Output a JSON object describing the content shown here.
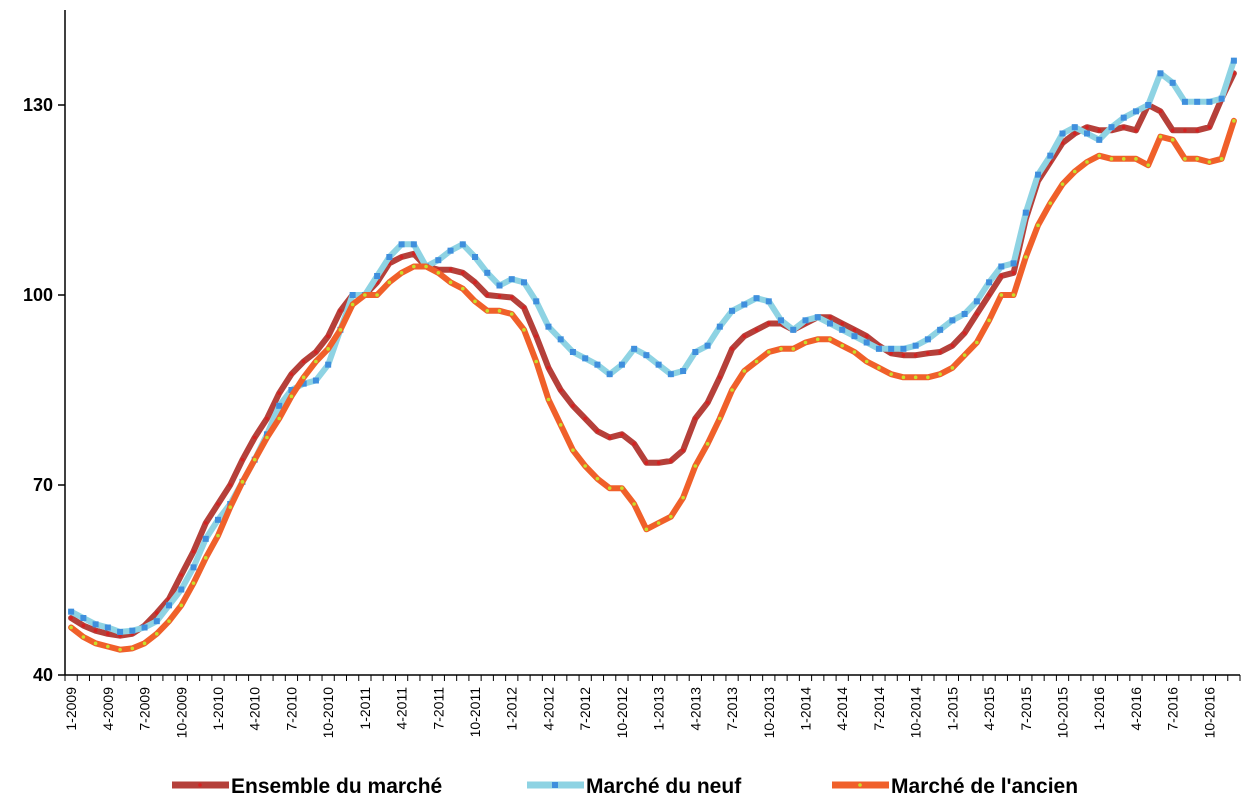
{
  "chart_data": {
    "type": "line",
    "title": "",
    "xlabel": "",
    "ylabel": "",
    "ylim": [
      40,
      145
    ],
    "y_ticks": [
      40,
      70,
      100,
      130
    ],
    "grid": false,
    "legend_position": "bottom",
    "x": [
      "1-2009",
      "2-2009",
      "3-2009",
      "4-2009",
      "5-2009",
      "6-2009",
      "7-2009",
      "8-2009",
      "9-2009",
      "10-2009",
      "11-2009",
      "12-2009",
      "1-2010",
      "2-2010",
      "3-2010",
      "4-2010",
      "5-2010",
      "6-2010",
      "7-2010",
      "8-2010",
      "9-2010",
      "10-2010",
      "11-2010",
      "12-2010",
      "1-2011",
      "2-2011",
      "3-2011",
      "4-2011",
      "5-2011",
      "6-2011",
      "7-2011",
      "8-2011",
      "9-2011",
      "10-2011",
      "11-2011",
      "12-2011",
      "1-2012",
      "2-2012",
      "3-2012",
      "4-2012",
      "5-2012",
      "6-2012",
      "7-2012",
      "8-2012",
      "9-2012",
      "10-2012",
      "11-2012",
      "12-2012",
      "1-2013",
      "2-2013",
      "3-2013",
      "4-2013",
      "5-2013",
      "6-2013",
      "7-2013",
      "8-2013",
      "9-2013",
      "10-2013",
      "11-2013",
      "12-2013",
      "1-2014",
      "2-2014",
      "3-2014",
      "4-2014",
      "5-2014",
      "6-2014",
      "7-2014",
      "8-2014",
      "9-2014",
      "10-2014",
      "11-2014",
      "12-2014",
      "1-2015",
      "2-2015",
      "3-2015",
      "4-2015",
      "5-2015",
      "6-2015",
      "7-2015",
      "8-2015",
      "9-2015",
      "10-2015",
      "11-2015",
      "12-2015",
      "1-2016",
      "2-2016",
      "3-2016",
      "4-2016",
      "5-2016",
      "6-2016",
      "7-2016",
      "8-2016",
      "9-2016",
      "10-2016",
      "11-2016",
      "12-2016"
    ],
    "x_tick_labels": [
      "1-2009",
      "4-2009",
      "7-2009",
      "10-2009",
      "1-2010",
      "4-2010",
      "7-2010",
      "10-2010",
      "1-2011",
      "4-2011",
      "7-2011",
      "10-2011",
      "1-2012",
      "4-2012",
      "7-2012",
      "10-2012",
      "1-2013",
      "4-2013",
      "7-2013",
      "10-2013",
      "1-2014",
      "4-2014",
      "7-2014",
      "10-2014",
      "1-2015",
      "4-2015",
      "7-2015",
      "10-2015",
      "1-2016",
      "4-2016",
      "7-2016",
      "10-2016"
    ],
    "series": [
      {
        "name": "Ensemble du marché",
        "color": "#b5403a",
        "marker_color": "#d62020",
        "marker": "dot",
        "values": [
          49.0,
          47.8,
          47.0,
          46.5,
          46.2,
          46.5,
          47.8,
          49.8,
          52.0,
          55.8,
          59.5,
          64.0,
          67.0,
          70.0,
          74.0,
          77.5,
          80.5,
          84.5,
          87.5,
          89.5,
          91.0,
          93.5,
          97.5,
          100.0,
          100.0,
          102.0,
          105.0,
          106.0,
          106.5,
          104.5,
          104.0,
          104.0,
          103.5,
          102.0,
          100.0,
          99.8,
          99.6,
          98.0,
          93.5,
          88.5,
          85.0,
          82.5,
          80.5,
          78.5,
          77.5,
          78.0,
          76.5,
          73.5,
          73.5,
          73.8,
          75.5,
          80.5,
          83.0,
          87.0,
          91.5,
          93.5,
          94.5,
          95.5,
          95.5,
          94.5,
          95.5,
          96.5,
          96.5,
          95.5,
          94.5,
          93.5,
          92.0,
          90.8,
          90.5,
          90.5,
          90.8,
          91.0,
          92.0,
          94.0,
          97.0,
          100.0,
          103.0,
          103.5,
          112.0,
          118.0,
          121.0,
          124.0,
          125.5,
          126.5,
          126.0,
          126.0,
          126.5,
          126.0,
          130.0,
          129.0,
          126.0,
          126.0,
          126.0,
          126.5,
          131.0,
          135.0
        ]
      },
      {
        "name": "Marché du neuf",
        "color": "#8ed3e3",
        "marker_color": "#3f8fdd",
        "marker": "square",
        "values": [
          50.0,
          49.0,
          48.0,
          47.5,
          46.8,
          47.0,
          47.5,
          48.5,
          51.0,
          53.5,
          57.0,
          61.5,
          64.5,
          67.0,
          70.5,
          74.0,
          78.0,
          82.5,
          85.0,
          86.0,
          86.5,
          89.0,
          94.5,
          100.0,
          100.0,
          103.0,
          106.0,
          108.0,
          108.0,
          104.5,
          105.5,
          107.0,
          108.0,
          106.0,
          103.5,
          101.5,
          102.5,
          102.0,
          99.0,
          95.0,
          93.0,
          91.0,
          90.0,
          89.0,
          87.5,
          89.0,
          91.5,
          90.5,
          89.0,
          87.5,
          88.0,
          91.0,
          92.0,
          95.0,
          97.5,
          98.5,
          99.5,
          99.0,
          96.0,
          94.5,
          96.0,
          96.5,
          95.5,
          94.5,
          93.5,
          92.5,
          91.5,
          91.5,
          91.5,
          92.0,
          93.0,
          94.5,
          96.0,
          97.0,
          99.0,
          102.0,
          104.5,
          105.0,
          113.0,
          119.0,
          122.0,
          125.5,
          126.5,
          125.5,
          124.5,
          126.5,
          128.0,
          129.0,
          130.0,
          135.0,
          133.5,
          130.5,
          130.5,
          130.5,
          131.0,
          137.0
        ]
      },
      {
        "name": "Marché de l'ancien",
        "color": "#f0602a",
        "marker_color": "#c8e02a",
        "marker": "dot",
        "values": [
          47.5,
          46.0,
          45.0,
          44.5,
          44.0,
          44.2,
          45.0,
          46.5,
          48.5,
          51.0,
          54.5,
          58.5,
          62.0,
          66.5,
          70.5,
          74.0,
          77.5,
          80.5,
          84.0,
          87.0,
          89.5,
          91.5,
          94.5,
          98.5,
          100.0,
          100.0,
          102.0,
          103.5,
          104.5,
          104.5,
          103.5,
          102.0,
          101.0,
          99.0,
          97.5,
          97.5,
          97.0,
          94.5,
          89.5,
          83.5,
          79.5,
          75.5,
          73.0,
          71.0,
          69.5,
          69.5,
          67.0,
          63.0,
          64.0,
          65.0,
          68.0,
          73.0,
          76.5,
          80.5,
          85.0,
          88.0,
          89.5,
          91.0,
          91.5,
          91.5,
          92.5,
          93.0,
          93.0,
          92.0,
          91.0,
          89.5,
          88.5,
          87.5,
          87.0,
          87.0,
          87.0,
          87.5,
          88.5,
          90.5,
          92.5,
          96.0,
          100.0,
          100.0,
          106.0,
          111.0,
          114.5,
          117.5,
          119.5,
          121.0,
          122.0,
          121.5,
          121.5,
          121.5,
          120.5,
          125.0,
          124.5,
          121.5,
          121.5,
          121.0,
          121.5,
          127.5
        ]
      }
    ]
  }
}
